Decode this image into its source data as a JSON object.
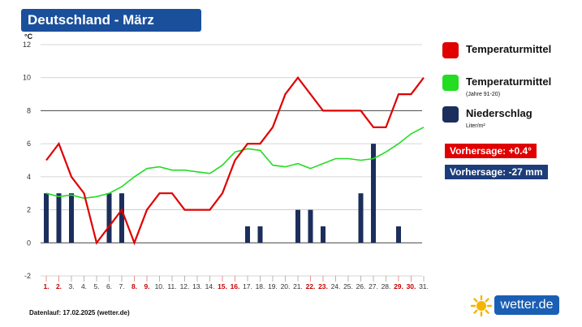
{
  "title": "Deutschland - März",
  "unit_label": "°C",
  "legend": {
    "temp_label": "Temperaturmittel",
    "clim_label": "Temperaturmittel",
    "clim_sub": "(Jahre 91-20)",
    "precip_label": "Niederschlag",
    "precip_sub": "Liter/m²",
    "colors": {
      "temp": "#e00000",
      "clim": "#22dd22",
      "precip": "#1c2e5c"
    }
  },
  "forecast": {
    "temp": "Vorhersage: +0.4°",
    "precip": "Vorhersage: -27 mm"
  },
  "footnote": "Datenlauf: 17.02.2025 (wetter.de)",
  "logo": {
    "text": "wetter.de"
  },
  "chart_data": {
    "type": "line",
    "ylim": [
      -2,
      12
    ],
    "yticks": [
      -2,
      0,
      2,
      4,
      6,
      8,
      10,
      12
    ],
    "x": [
      "1.",
      "2.",
      "3.",
      "4.",
      "5.",
      "6.",
      "7.",
      "8.",
      "9.",
      "10.",
      "11.",
      "12.",
      "13.",
      "14.",
      "15.",
      "16.",
      "17.",
      "18.",
      "19.",
      "20.",
      "21.",
      "22.",
      "23.",
      "24.",
      "25.",
      "26.",
      "27.",
      "28.",
      "29.",
      "30.",
      "31."
    ],
    "weekend_days": [
      1,
      2,
      8,
      9,
      15,
      16,
      22,
      23,
      29,
      30
    ],
    "series": [
      {
        "name": "Temperaturmittel",
        "type": "line",
        "color": "#e00000",
        "values": [
          5,
          6,
          4,
          3,
          0,
          1,
          2,
          0,
          2,
          3,
          3,
          2,
          2,
          2,
          3,
          5,
          6,
          6,
          7,
          9,
          10,
          9,
          8,
          8,
          8,
          8,
          7,
          7,
          9,
          9,
          10
        ]
      },
      {
        "name": "Temperaturmittel",
        "type": "line",
        "color": "#22dd22",
        "values": [
          3,
          2.8,
          2.9,
          2.7,
          2.8,
          3,
          3.4,
          4,
          4.5,
          4.6,
          4.4,
          4.4,
          4.3,
          4.2,
          4.7,
          5.5,
          5.7,
          5.6,
          4.7,
          4.6,
          4.8,
          4.5,
          4.8,
          5.1,
          5.1,
          5,
          5.1,
          5.5,
          6,
          6.6,
          7
        ]
      },
      {
        "name": "Niederschlag",
        "type": "bar",
        "color": "#1c2e5c",
        "values": [
          3,
          3,
          3,
          0,
          0,
          3,
          3,
          0,
          0,
          0,
          0,
          0,
          0,
          0,
          0,
          0,
          1,
          1,
          0,
          0,
          2,
          2,
          1,
          0,
          0,
          3,
          6,
          0,
          1,
          0,
          0
        ]
      }
    ]
  }
}
